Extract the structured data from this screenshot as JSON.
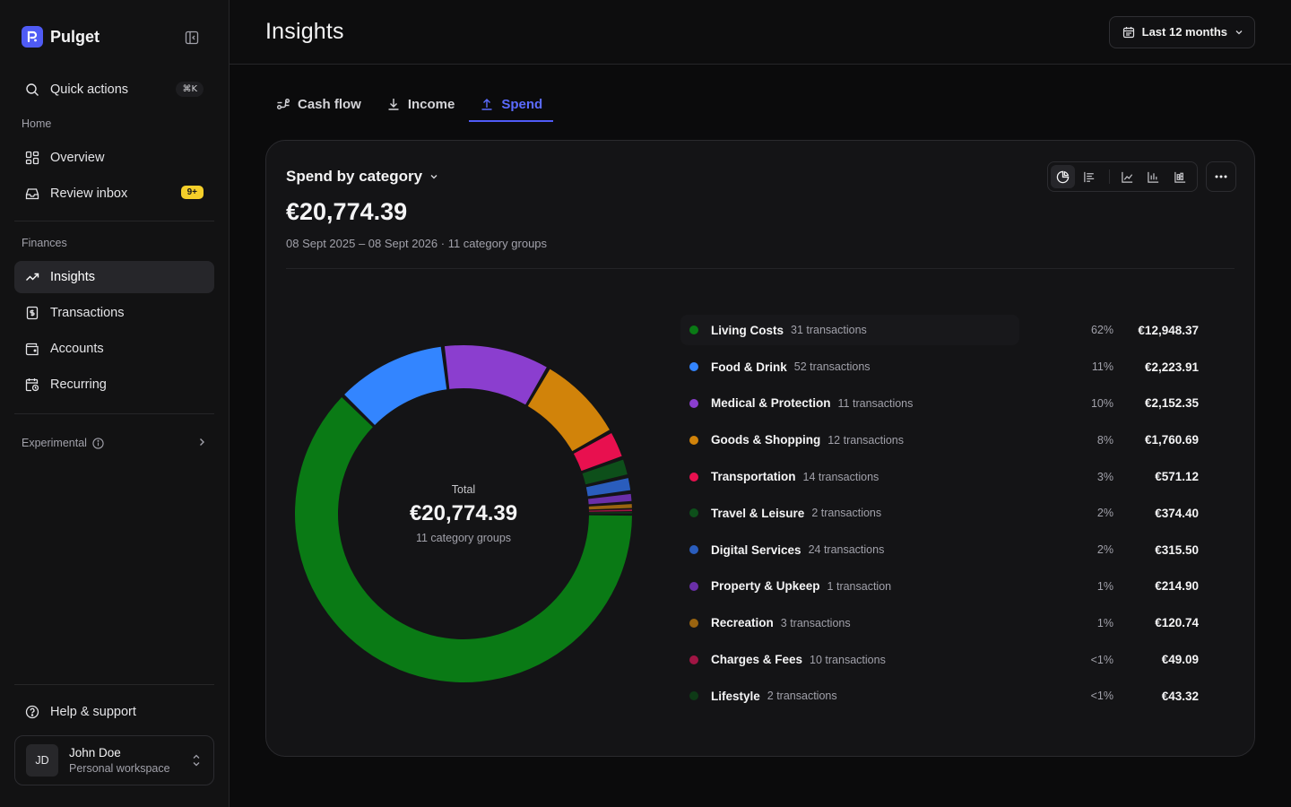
{
  "brand": {
    "name": "Pulget"
  },
  "sidebar": {
    "quick_actions": {
      "label": "Quick actions",
      "shortcut": "⌘K"
    },
    "home_section": "Home",
    "home_items": [
      {
        "label": "Overview",
        "icon": "grid-icon"
      },
      {
        "label": "Review inbox",
        "icon": "inbox-icon",
        "badge": "9+"
      }
    ],
    "finances_section": "Finances",
    "finance_items": [
      {
        "label": "Insights",
        "icon": "trending-up-icon",
        "active": true
      },
      {
        "label": "Transactions",
        "icon": "receipt-icon"
      },
      {
        "label": "Accounts",
        "icon": "wallet-icon"
      },
      {
        "label": "Recurring",
        "icon": "calendar-clock-icon"
      }
    ],
    "experimental": "Experimental",
    "help": "Help & support",
    "user": {
      "initials": "JD",
      "name": "John Doe",
      "workspace": "Personal workspace"
    }
  },
  "header": {
    "title": "Insights",
    "range": "Last 12 months"
  },
  "tabs": [
    {
      "label": "Cash flow",
      "icon": "flow-icon"
    },
    {
      "label": "Income",
      "icon": "download-icon"
    },
    {
      "label": "Spend",
      "icon": "upload-icon",
      "active": true
    }
  ],
  "card": {
    "title": "Spend by category",
    "amount": "€20,774.39",
    "subtitle": "08 Sept 2025 – 08 Sept 2026 · 11 category groups",
    "center_label": "Total",
    "center_amount": "€20,774.39",
    "center_sub": "11 category groups"
  },
  "colors": {
    "accent": "#4f5bf5",
    "badge": "#f5cf2a"
  },
  "chart_data": {
    "type": "pie",
    "variant": "donut",
    "categories": [
      "Living Costs",
      "Food & Drink",
      "Medical & Protection",
      "Goods & Shopping",
      "Transportation",
      "Travel & Leisure",
      "Digital Services",
      "Property & Upkeep",
      "Recreation",
      "Charges & Fees",
      "Lifestyle"
    ],
    "values": [
      12948.37,
      2223.91,
      2152.35,
      1760.69,
      571.12,
      374.4,
      315.5,
      214.9,
      120.74,
      49.09,
      43.32
    ],
    "colors": [
      "#0a7a15",
      "#3385ff",
      "#8b3ecf",
      "#d1830a",
      "#e8104f",
      "#0d4f1a",
      "#2a5dbd",
      "#6a2fa8",
      "#9a6410",
      "#a11544",
      "#0e3a16"
    ],
    "legend": [
      {
        "name": "Living Costs",
        "count": "31 transactions",
        "pct": "62%",
        "amount": "€12,948.37"
      },
      {
        "name": "Food & Drink",
        "count": "52 transactions",
        "pct": "11%",
        "amount": "€2,223.91"
      },
      {
        "name": "Medical & Protection",
        "count": "11 transactions",
        "pct": "10%",
        "amount": "€2,152.35"
      },
      {
        "name": "Goods & Shopping",
        "count": "12 transactions",
        "pct": "8%",
        "amount": "€1,760.69"
      },
      {
        "name": "Transportation",
        "count": "14 transactions",
        "pct": "3%",
        "amount": "€571.12"
      },
      {
        "name": "Travel & Leisure",
        "count": "2 transactions",
        "pct": "2%",
        "amount": "€374.40"
      },
      {
        "name": "Digital Services",
        "count": "24 transactions",
        "pct": "2%",
        "amount": "€315.50"
      },
      {
        "name": "Property & Upkeep",
        "count": "1 transaction",
        "pct": "1%",
        "amount": "€214.90"
      },
      {
        "name": "Recreation",
        "count": "3 transactions",
        "pct": "1%",
        "amount": "€120.74"
      },
      {
        "name": "Charges & Fees",
        "count": "10 transactions",
        "pct": "<1%",
        "amount": "€49.09"
      },
      {
        "name": "Lifestyle",
        "count": "2 transactions",
        "pct": "<1%",
        "amount": "€43.32"
      }
    ]
  }
}
